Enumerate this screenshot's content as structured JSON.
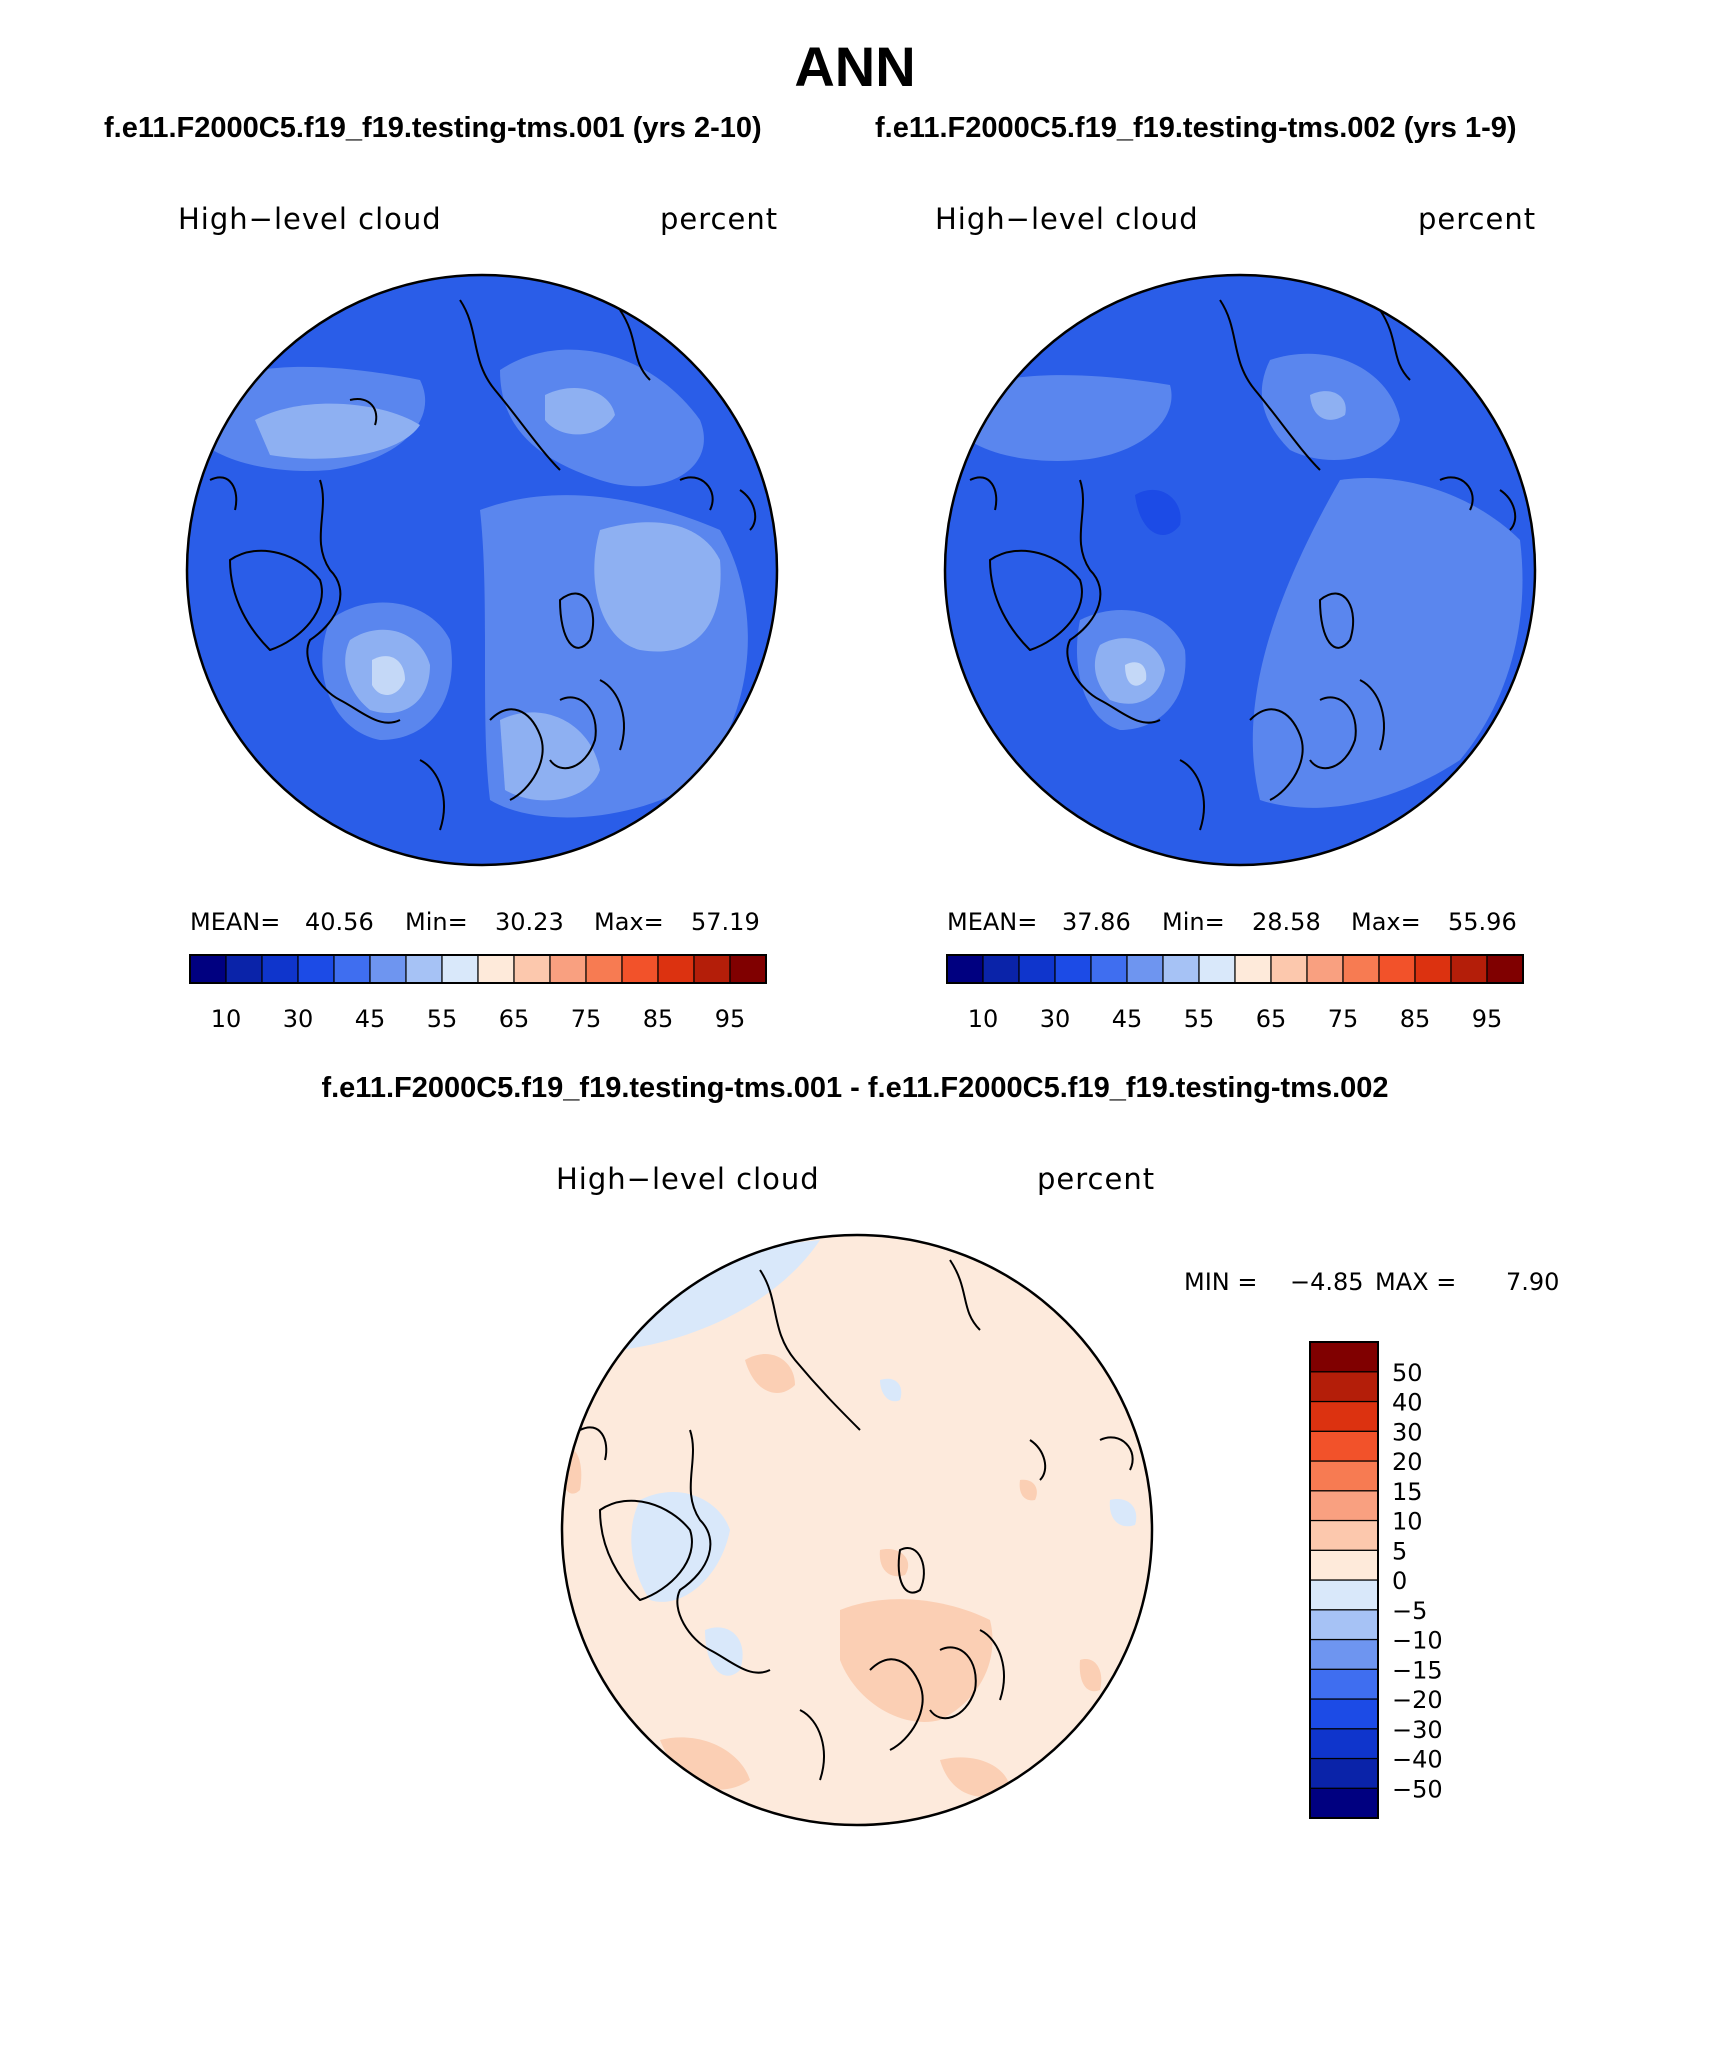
{
  "figure": {
    "season": "ANN",
    "case1": "f.e11.F2000C5.f19_f19.testing-tms.001 (yrs 2-10)",
    "case2": "f.e11.F2000C5.f19_f19.testing-tms.002 (yrs 1-9)",
    "diff_title": "f.e11.F2000C5.f19_f19.testing-tms.001 - f.e11.F2000C5.f19_f19.testing-tms.002"
  },
  "panels": [
    {
      "variable": "High−level cloud",
      "units": "percent",
      "mean_label": "MEAN=",
      "mean": "40.56",
      "min_label": "Min=",
      "min": "30.23",
      "max_label": "Max=",
      "max": "57.19"
    },
    {
      "variable": "High−level cloud",
      "units": "percent",
      "mean_label": "MEAN=",
      "mean": "37.86",
      "min_label": "Min=",
      "min": "28.58",
      "max_label": "Max=",
      "max": "55.96"
    },
    {
      "variable": "High−level cloud",
      "units": "percent",
      "min_label": "MIN =",
      "min": "−4.85",
      "max_label": "MAX =",
      "max": "7.90"
    }
  ],
  "colorbar_abs": {
    "colors": [
      "#000080",
      "#0a23a9",
      "#0f35cc",
      "#1c4be6",
      "#3f6ef0",
      "#6e95f0",
      "#a6c2f5",
      "#d9e8fa",
      "#feeada",
      "#fcc8ad",
      "#f9a080",
      "#f77b52",
      "#f2522a",
      "#dc3210",
      "#b41e09",
      "#800000"
    ],
    "tick_labels": [
      "10",
      "30",
      "45",
      "55",
      "65",
      "75",
      "85",
      "95"
    ]
  },
  "colorbar_diff": {
    "colors": [
      "#000080",
      "#0a23a9",
      "#0f35cc",
      "#1c4be6",
      "#3f6ef0",
      "#6e95f0",
      "#a6c2f5",
      "#d9e8fa",
      "#feeada",
      "#fcc8ad",
      "#f9a080",
      "#f77b52",
      "#f2522a",
      "#dc3210",
      "#b41e09",
      "#800000"
    ],
    "tick_labels": [
      "−50",
      "−40",
      "−30",
      "−20",
      "−15",
      "−10",
      "−5",
      "0",
      "5",
      "10",
      "15",
      "20",
      "30",
      "40",
      "50"
    ]
  },
  "map_colors": {
    "base_abs": "#2a5de8",
    "dark_abs": "#1c4be6",
    "mid_abs": "#5a86ee",
    "light_abs": "#8eb0f2",
    "lightest_abs": "#c4d8f7",
    "base_diff": "#fdeadc",
    "pos_diff": "#fbcfb4",
    "neg_diff": "#d9e8fa",
    "coast": "#000000"
  }
}
